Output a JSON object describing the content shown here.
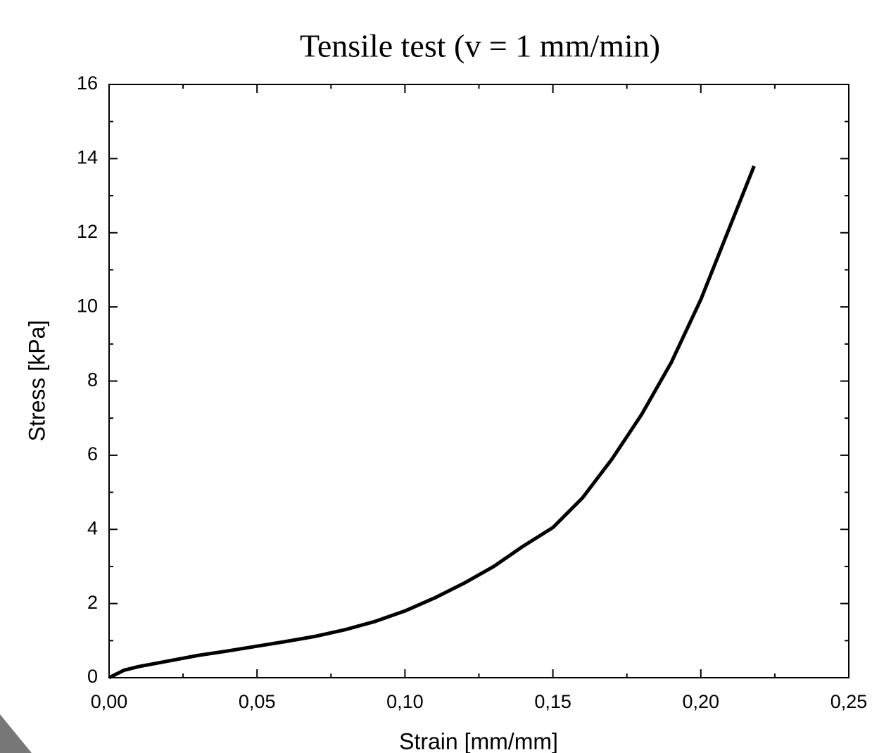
{
  "chart_data": {
    "type": "line",
    "title": "Tensile test (v = 1 mm/min)",
    "x_label": "Strain [mm/mm]",
    "y_label": "Stress [kPa]",
    "x": [
      0,
      0.005,
      0.01,
      0.02,
      0.03,
      0.04,
      0.05,
      0.06,
      0.07,
      0.08,
      0.09,
      0.1,
      0.11,
      0.12,
      0.13,
      0.14,
      0.15,
      0.16,
      0.17,
      0.18,
      0.19,
      0.2,
      0.21,
      0.218
    ],
    "series": [
      {
        "name": "Stress",
        "color": "#000000",
        "values": [
          0,
          0.2,
          0.3,
          0.45,
          0.6,
          0.72,
          0.85,
          0.98,
          1.12,
          1.3,
          1.52,
          1.8,
          2.15,
          2.55,
          3.0,
          3.55,
          4.05,
          4.85,
          5.9,
          7.1,
          8.5,
          10.2,
          12.2,
          13.8
        ]
      }
    ],
    "xlim": [
      0,
      0.25
    ],
    "ylim": [
      0,
      16
    ],
    "xticks": [
      {
        "value": 0,
        "label": "0,00"
      },
      {
        "value": 0.05,
        "label": "0,05"
      },
      {
        "value": 0.1,
        "label": "0,10"
      },
      {
        "value": 0.15,
        "label": "0,15"
      },
      {
        "value": 0.2,
        "label": "0,20"
      },
      {
        "value": 0.25,
        "label": "0,25"
      }
    ],
    "yticks": [
      0,
      2,
      4,
      6,
      8,
      10,
      12,
      14,
      16
    ],
    "grid": false
  }
}
